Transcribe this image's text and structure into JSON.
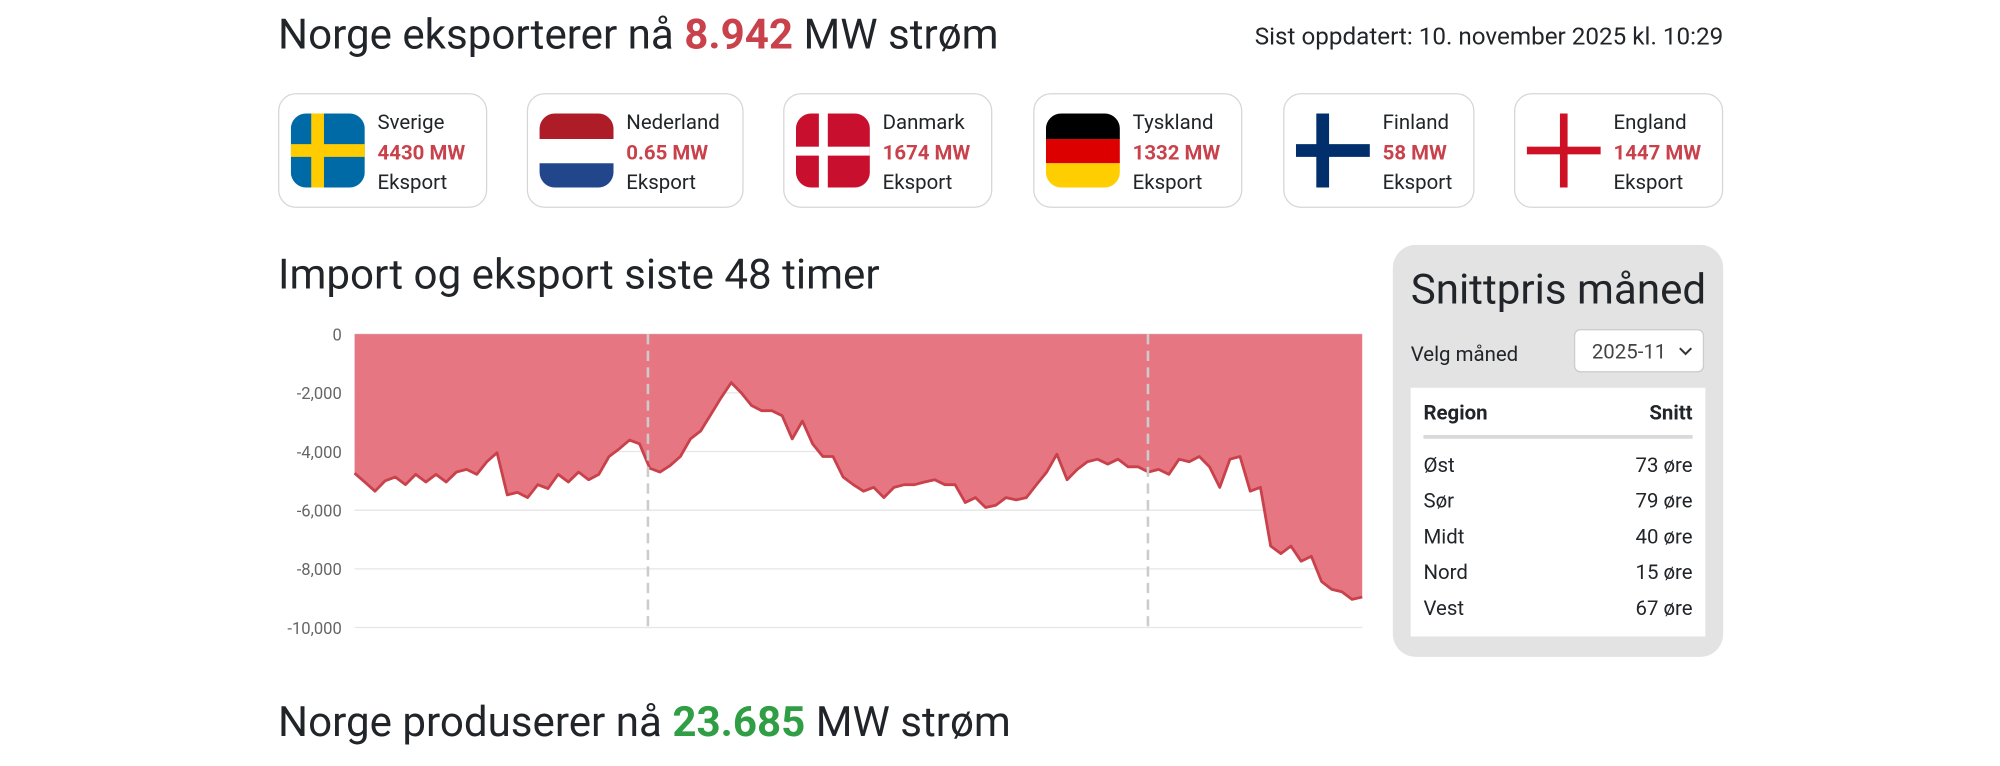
{
  "header": {
    "title_prefix": "Norge eksporterer nå",
    "title_value": "8.942",
    "title_suffix": "MW strøm",
    "updated": "Sist oppdatert: 10. november 2025 kl. 10:29"
  },
  "countries": [
    {
      "name": "Sverige",
      "value": "4430 MW",
      "status": "Eksport"
    },
    {
      "name": "Nederland",
      "value": "0.65 MW",
      "status": "Eksport"
    },
    {
      "name": "Danmark",
      "value": "1674 MW",
      "status": "Eksport"
    },
    {
      "name": "Tyskland",
      "value": "1332 MW",
      "status": "Eksport"
    },
    {
      "name": "Finland",
      "value": "58 MW",
      "status": "Eksport"
    },
    {
      "name": "England",
      "value": "1447 MW",
      "status": "Eksport"
    }
  ],
  "chart_data": {
    "type": "area",
    "title": "Import og eksport siste 48 timer",
    "values": [
      -4740,
      -5040,
      -5350,
      -5000,
      -4870,
      -5130,
      -4780,
      -5040,
      -4780,
      -5040,
      -4700,
      -4610,
      -4780,
      -4350,
      -4040,
      -5480,
      -5390,
      -5570,
      -5130,
      -5260,
      -4780,
      -5040,
      -4700,
      -4960,
      -4780,
      -4170,
      -3910,
      -3610,
      -3740,
      -4570,
      -4700,
      -4480,
      -4170,
      -3570,
      -3300,
      -2740,
      -2170,
      -1650,
      -2000,
      -2430,
      -2610,
      -2610,
      -2780,
      -3570,
      -2960,
      -3740,
      -4170,
      -4170,
      -4870,
      -5130,
      -5350,
      -5220,
      -5570,
      -5220,
      -5130,
      -5130,
      -5040,
      -4960,
      -5130,
      -5130,
      -5740,
      -5570,
      -5910,
      -5830,
      -5570,
      -5650,
      -5570,
      -5130,
      -4700,
      -4090,
      -4960,
      -4610,
      -4350,
      -4260,
      -4430,
      -4260,
      -4520,
      -4520,
      -4700,
      -4610,
      -4780,
      -4260,
      -4350,
      -4170,
      -4520,
      -5220,
      -4260,
      -4170,
      -5350,
      -5220,
      -7220,
      -7480,
      -7220,
      -7740,
      -7570,
      -8430,
      -8700,
      -8780,
      -9040,
      -8960
    ],
    "line_color": "#c8414b",
    "fill_color": "#e5707b",
    "ylim": [
      -10000,
      0
    ],
    "yticks": [
      0,
      {
        "value": -2000,
        "label": "-2,000"
      },
      {
        "value": -4000,
        "label": "-4,000"
      },
      {
        "value": -6000,
        "label": "-6,000"
      },
      {
        "value": -8000,
        "label": "-8,000"
      },
      {
        "value": -10000,
        "label": "-10,000"
      }
    ],
    "grid": true
  },
  "price_panel": {
    "title": "Snittpris måned",
    "select_label": "Velg måned",
    "selected": "2025-11",
    "columns": [
      "Region",
      "Snitt"
    ],
    "rows": [
      [
        "Øst",
        "73 øre"
      ],
      [
        "Sør",
        "79 øre"
      ],
      [
        "Midt",
        "40 øre"
      ],
      [
        "Nord",
        "15 øre"
      ],
      [
        "Vest",
        "67 øre"
      ]
    ]
  },
  "production": {
    "title_prefix": "Norge produserer nå",
    "title_value": "23.685",
    "title_suffix": "MW strøm"
  }
}
